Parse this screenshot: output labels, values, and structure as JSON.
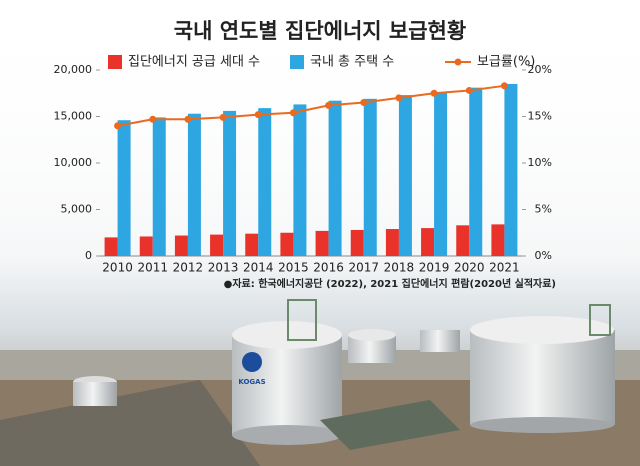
{
  "chart_data": {
    "type": "bar",
    "title": "국내 연도별 집단에너지 보급현황",
    "categories": [
      "2010",
      "2011",
      "2012",
      "2013",
      "2014",
      "2015",
      "2016",
      "2017",
      "2018",
      "2019",
      "2020",
      "2021"
    ],
    "series": [
      {
        "name": "집단에너지 공급 세대 수",
        "color": "#e8322a",
        "values": [
          2000,
          2100,
          2200,
          2300,
          2400,
          2500,
          2700,
          2800,
          2900,
          3000,
          3300,
          3400
        ]
      },
      {
        "name": "국내 총 주택 수",
        "color": "#2ea6e2",
        "values": [
          14600,
          14900,
          15300,
          15600,
          15900,
          16300,
          16700,
          16900,
          17300,
          17600,
          18100,
          18500
        ]
      },
      {
        "name": "보급률(%)",
        "color": "#ea6a1f",
        "axis": "y2",
        "type": "line",
        "values": [
          14.0,
          14.7,
          14.7,
          14.9,
          15.2,
          15.4,
          16.2,
          16.5,
          17.0,
          17.5,
          17.8,
          18.3
        ]
      }
    ],
    "ylim": [
      0,
      20000
    ],
    "yticks": [
      0,
      {
        "value": 5000,
        "label": "5,000"
      },
      {
        "value": 10000,
        "label": "10,000"
      },
      {
        "value": 15000,
        "label": "15,000"
      },
      {
        "value": 20000,
        "label": "20,000"
      }
    ],
    "y2lim": [
      0,
      20
    ],
    "y2ticks": [
      {
        "value": 0,
        "label": "0%"
      },
      {
        "value": 5,
        "label": "5%"
      },
      {
        "value": 10,
        "label": "10%"
      },
      {
        "value": 15,
        "label": "15%"
      },
      {
        "value": 20,
        "label": "20%"
      }
    ],
    "grid": false,
    "source": "●자료: 한국에너지공단 (2022), 2021 집단에너지 편람(2020년 실적자료)"
  },
  "photo": {
    "tank_logo": "KOGAS"
  }
}
